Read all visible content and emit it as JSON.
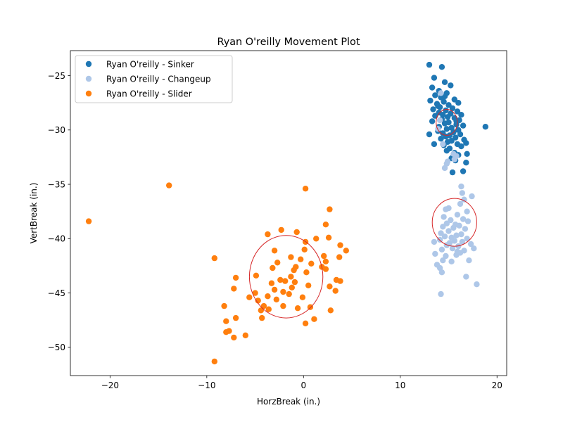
{
  "chart_data": {
    "type": "scatter",
    "title": "Ryan O'reilly Movement Plot",
    "xlabel": "HorzBreak (in.)",
    "ylabel": "VertBreak (in.)",
    "xlim": [
      -24.1,
      21.0
    ],
    "ylim": [
      -52.6,
      -22.7
    ],
    "xticks": [
      -20,
      -10,
      0,
      10,
      20
    ],
    "yticks": [
      -50,
      -45,
      -40,
      -35,
      -30,
      -25
    ],
    "grid": false,
    "legend_position": "top-left",
    "series": [
      {
        "name": "Ryan O'reilly - Sinker",
        "color": "#1f77b4",
        "points": [
          [
            13.0,
            -24.0
          ],
          [
            14.3,
            -24.2
          ],
          [
            13.5,
            -25.2
          ],
          [
            14.6,
            -25.6
          ],
          [
            15.2,
            -25.9
          ],
          [
            13.3,
            -26.1
          ],
          [
            14.0,
            -26.4
          ],
          [
            14.8,
            -26.6
          ],
          [
            13.6,
            -26.8
          ],
          [
            14.2,
            -27.0
          ],
          [
            15.6,
            -27.2
          ],
          [
            13.1,
            -27.3
          ],
          [
            14.5,
            -27.4
          ],
          [
            16.0,
            -27.5
          ],
          [
            13.8,
            -27.6
          ],
          [
            15.0,
            -27.7
          ],
          [
            14.1,
            -27.9
          ],
          [
            15.4,
            -28.0
          ],
          [
            13.4,
            -28.1
          ],
          [
            14.7,
            -28.2
          ],
          [
            15.9,
            -28.3
          ],
          [
            14.0,
            -28.4
          ],
          [
            15.2,
            -28.5
          ],
          [
            16.3,
            -28.6
          ],
          [
            13.6,
            -28.7
          ],
          [
            14.9,
            -28.8
          ],
          [
            15.6,
            -28.9
          ],
          [
            14.3,
            -29.0
          ],
          [
            16.1,
            -29.1
          ],
          [
            13.3,
            -29.2
          ],
          [
            15.0,
            -29.3
          ],
          [
            14.6,
            -29.4
          ],
          [
            15.8,
            -29.5
          ],
          [
            16.5,
            -29.6
          ],
          [
            14.0,
            -29.7
          ],
          [
            15.3,
            -29.8
          ],
          [
            14.8,
            -29.9
          ],
          [
            16.0,
            -30.0
          ],
          [
            13.9,
            -30.1
          ],
          [
            15.5,
            -30.2
          ],
          [
            14.4,
            -30.3
          ],
          [
            16.2,
            -30.4
          ],
          [
            13.0,
            -30.4
          ],
          [
            15.1,
            -30.5
          ],
          [
            14.7,
            -30.6
          ],
          [
            15.7,
            -30.7
          ],
          [
            14.2,
            -30.8
          ],
          [
            16.6,
            -30.9
          ],
          [
            15.3,
            -31.0
          ],
          [
            14.9,
            -31.1
          ],
          [
            16.8,
            -31.2
          ],
          [
            13.5,
            -31.3
          ],
          [
            15.9,
            -31.3
          ],
          [
            14.5,
            -31.4
          ],
          [
            16.3,
            -31.5
          ],
          [
            15.1,
            -31.7
          ],
          [
            14.8,
            -31.9
          ],
          [
            15.6,
            -32.1
          ],
          [
            16.0,
            -32.3
          ],
          [
            15.3,
            -32.6
          ],
          [
            16.9,
            -32.2
          ],
          [
            15.7,
            -32.8
          ],
          [
            16.8,
            -33.0
          ],
          [
            15.4,
            -33.9
          ],
          [
            16.5,
            -33.8
          ],
          [
            18.8,
            -29.7
          ],
          [
            14.6,
            -26.9
          ],
          [
            13.9,
            -27.8
          ],
          [
            14.4,
            -28.6
          ],
          [
            15.8,
            -29.2
          ]
        ]
      },
      {
        "name": "Ryan O'reilly - Changeup",
        "color": "#aec7e8",
        "points": [
          [
            14.2,
            -26.6
          ],
          [
            14.1,
            -29.1
          ],
          [
            13.9,
            -29.9
          ],
          [
            14.4,
            -31.3
          ],
          [
            15.5,
            -32.2
          ],
          [
            14.9,
            -32.9
          ],
          [
            14.6,
            -33.5
          ],
          [
            15.6,
            -32.7
          ],
          [
            14.8,
            -33.1
          ],
          [
            15.8,
            -32.4
          ],
          [
            16.3,
            -35.2
          ],
          [
            16.4,
            -35.8
          ],
          [
            16.6,
            -36.4
          ],
          [
            17.4,
            -36.1
          ],
          [
            16.2,
            -36.8
          ],
          [
            15.0,
            -37.2
          ],
          [
            14.7,
            -37.3
          ],
          [
            16.9,
            -37.5
          ],
          [
            15.9,
            -37.8
          ],
          [
            14.5,
            -38.0
          ],
          [
            16.5,
            -38.2
          ],
          [
            15.2,
            -38.3
          ],
          [
            17.0,
            -38.4
          ],
          [
            14.8,
            -38.6
          ],
          [
            15.7,
            -38.7
          ],
          [
            16.1,
            -38.8
          ],
          [
            14.4,
            -38.9
          ],
          [
            15.5,
            -39.0
          ],
          [
            16.7,
            -39.1
          ],
          [
            15.0,
            -39.3
          ],
          [
            14.2,
            -39.5
          ],
          [
            16.3,
            -39.6
          ],
          [
            15.8,
            -39.7
          ],
          [
            14.6,
            -39.8
          ],
          [
            15.3,
            -39.9
          ],
          [
            16.9,
            -40.0
          ],
          [
            14.1,
            -40.1
          ],
          [
            15.6,
            -40.2
          ],
          [
            16.4,
            -40.3
          ],
          [
            15.1,
            -40.4
          ],
          [
            14.8,
            -40.6
          ],
          [
            16.0,
            -40.7
          ],
          [
            17.3,
            -40.5
          ],
          [
            13.5,
            -40.3
          ],
          [
            15.4,
            -40.9
          ],
          [
            14.3,
            -41.0
          ],
          [
            16.6,
            -41.1
          ],
          [
            15.9,
            -41.2
          ],
          [
            13.6,
            -41.4
          ],
          [
            14.7,
            -41.6
          ],
          [
            16.2,
            -41.3
          ],
          [
            17.6,
            -40.9
          ],
          [
            14.4,
            -42.0
          ],
          [
            15.3,
            -42.1
          ],
          [
            13.8,
            -42.4
          ],
          [
            14.1,
            -42.7
          ],
          [
            14.3,
            -43.1
          ],
          [
            16.8,
            -43.5
          ],
          [
            17.9,
            -44.2
          ],
          [
            14.2,
            -45.1
          ],
          [
            17.1,
            -42.0
          ],
          [
            15.8,
            -41.5
          ]
        ]
      },
      {
        "name": "Ryan O'reilly - Slider",
        "color": "#ff7f0e",
        "points": [
          [
            -22.2,
            -38.4
          ],
          [
            -13.9,
            -35.1
          ],
          [
            0.2,
            -35.4
          ],
          [
            2.7,
            -37.3
          ],
          [
            2.3,
            -38.7
          ],
          [
            -2.3,
            -39.2
          ],
          [
            -3.7,
            -39.6
          ],
          [
            -0.7,
            -39.4
          ],
          [
            1.3,
            -40.0
          ],
          [
            2.6,
            -39.9
          ],
          [
            0.2,
            -40.3
          ],
          [
            3.8,
            -40.6
          ],
          [
            4.4,
            -41.1
          ],
          [
            -3.0,
            -41.1
          ],
          [
            0.1,
            -41.0
          ],
          [
            -1.3,
            -41.7
          ],
          [
            2.1,
            -41.6
          ],
          [
            3.7,
            -41.7
          ],
          [
            -0.3,
            -41.9
          ],
          [
            2.3,
            -42.1
          ],
          [
            -2.7,
            -42.2
          ],
          [
            0.8,
            -42.3
          ],
          [
            -0.8,
            -42.6
          ],
          [
            2.3,
            -42.8
          ],
          [
            -3.2,
            -42.7
          ],
          [
            1.9,
            -42.6
          ],
          [
            -1.0,
            -42.9
          ],
          [
            0.3,
            -43.1
          ],
          [
            -4.9,
            -43.4
          ],
          [
            -1.3,
            -43.5
          ],
          [
            -1.9,
            -43.9
          ],
          [
            -2.4,
            -43.8
          ],
          [
            -0.9,
            -44.0
          ],
          [
            3.4,
            -43.8
          ],
          [
            3.8,
            -43.9
          ],
          [
            -3.3,
            -44.1
          ],
          [
            0.5,
            -44.3
          ],
          [
            2.7,
            -44.4
          ],
          [
            -1.2,
            -44.5
          ],
          [
            -7.2,
            -44.6
          ],
          [
            -3.0,
            -44.7
          ],
          [
            -2.1,
            -44.9
          ],
          [
            -1.5,
            -45.1
          ],
          [
            3.3,
            -44.8
          ],
          [
            -5.0,
            -45.0
          ],
          [
            -3.7,
            -45.3
          ],
          [
            -0.1,
            -45.4
          ],
          [
            -5.6,
            -45.4
          ],
          [
            -4.7,
            -45.7
          ],
          [
            -2.8,
            -45.6
          ],
          [
            -4.1,
            -46.2
          ],
          [
            -2.1,
            -46.2
          ],
          [
            -3.6,
            -46.5
          ],
          [
            -0.6,
            -46.4
          ],
          [
            0.7,
            -46.3
          ],
          [
            -8.2,
            -46.2
          ],
          [
            -4.4,
            -46.6
          ],
          [
            2.8,
            -46.6
          ],
          [
            -7.0,
            -47.3
          ],
          [
            -4.3,
            -47.3
          ],
          [
            1.1,
            -47.4
          ],
          [
            -8.0,
            -47.6
          ],
          [
            0.2,
            -47.8
          ],
          [
            -8.0,
            -48.6
          ],
          [
            -7.7,
            -48.5
          ],
          [
            -7.2,
            -49.1
          ],
          [
            -6.0,
            -48.9
          ],
          [
            -9.2,
            -41.8
          ],
          [
            -7.0,
            -43.6
          ],
          [
            -9.2,
            -51.3
          ]
        ]
      }
    ],
    "ellipses": [
      {
        "series": "Ryan O'reilly - Sinker",
        "center": [
          14.8,
          -29.3
        ],
        "radius_x": 1.1,
        "radius_y": 1.2,
        "color": "#d62728"
      },
      {
        "series": "Ryan O'reilly - Changeup",
        "center": [
          15.6,
          -38.5
        ],
        "radius_x": 2.3,
        "radius_y": 2.2,
        "color": "#d62728"
      },
      {
        "series": "Ryan O'reilly - Slider",
        "center": [
          -1.8,
          -43.5
        ],
        "radius_x": 3.8,
        "radius_y": 3.8,
        "color": "#d62728"
      }
    ]
  }
}
